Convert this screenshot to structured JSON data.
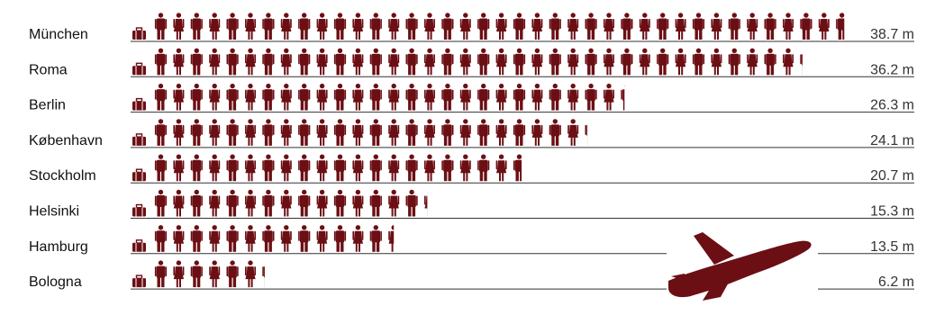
{
  "chart_data": {
    "type": "bar",
    "style": "pictogram",
    "title": "",
    "xlabel": "",
    "ylabel": "",
    "value_unit": "m",
    "icon": "person-icon",
    "decorations": [
      "suitcase-icon",
      "airplane-icon"
    ],
    "categories": [
      "München",
      "Roma",
      "Berlin",
      "København",
      "Stockholm",
      "Helsinki",
      "Hamburg",
      "Bologna"
    ],
    "values": [
      38.7,
      36.2,
      26.3,
      24.1,
      20.7,
      15.3,
      13.5,
      6.2
    ],
    "value_labels": [
      "38.7 m",
      "36.2 m",
      "26.3 m",
      "24.1 m",
      "20.7 m",
      "15.3 m",
      "13.5 m",
      "6.2 m"
    ],
    "xlim": [
      0,
      38.7
    ],
    "grid": false,
    "legend": "none"
  },
  "colors": {
    "icon": "#6b0f14",
    "baseline": "#333333",
    "text": "#111111"
  }
}
